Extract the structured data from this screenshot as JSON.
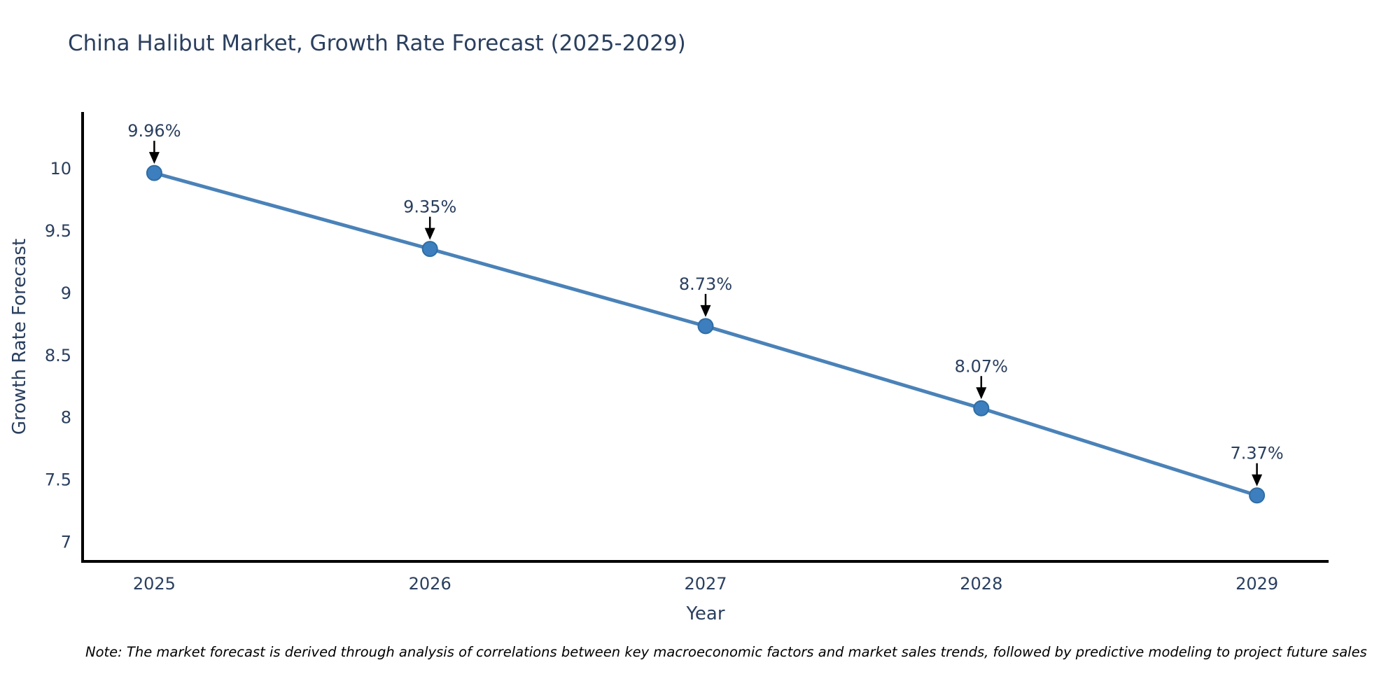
{
  "note": "Note: The market forecast is derived through analysis of correlations between key macroeconomic factors and market sales trends, followed by predictive modeling to project future sales",
  "chart_data": {
    "type": "line",
    "title": "China Halibut Market, Growth Rate Forecast (2025-2029)",
    "xlabel": "Year",
    "ylabel": "Growth Rate Forecast",
    "x": [
      2025,
      2026,
      2027,
      2028,
      2029
    ],
    "values": [
      9.96,
      9.35,
      8.73,
      8.07,
      7.37
    ],
    "labels": [
      "9.96%",
      "9.35%",
      "8.73%",
      "8.07%",
      "7.37%"
    ],
    "xticks": [
      2025,
      2026,
      2027,
      2028,
      2029
    ],
    "yticks": [
      7,
      7.5,
      8,
      8.5,
      9,
      9.5,
      10
    ],
    "xlim": [
      2024.74,
      2029.26
    ],
    "ylim": [
      6.84,
      10.45
    ],
    "grid": false,
    "legend": "none",
    "annotation_style": "value label with downward black arrow above each marker",
    "colors": {
      "line": "#4a82b8",
      "marker": "#3d7ebf",
      "marker_edge": "#2e6da4",
      "axis": "#000000",
      "text": "#2a3f5f",
      "annotation": "#000000"
    }
  }
}
